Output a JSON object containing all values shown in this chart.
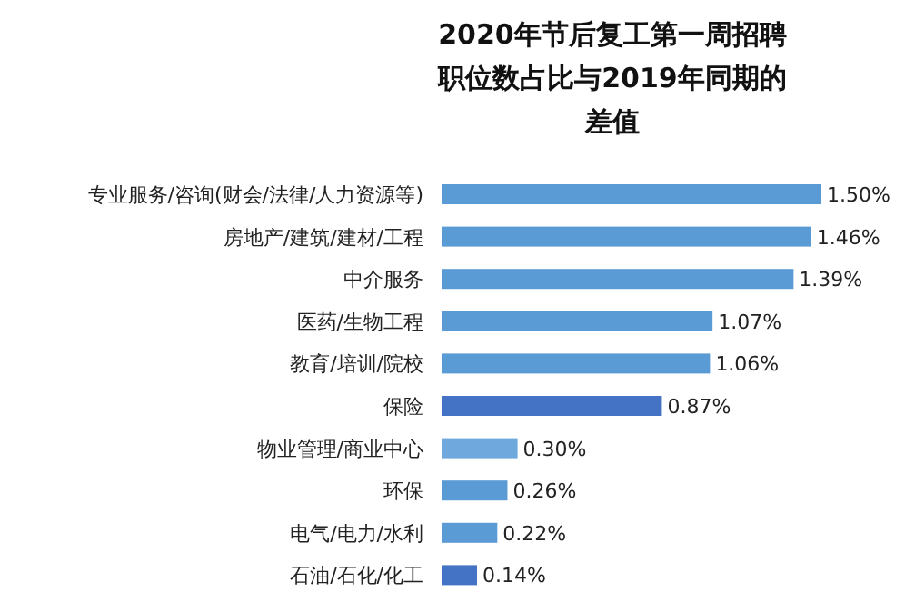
{
  "chart_data": {
    "type": "bar",
    "orientation": "horizontal",
    "title": "2020年节后复工第一周招聘职位数占比与2019年同期的差值",
    "categories": [
      "专业服务/咨询(财会/法律/人力资源等)",
      "房地产/建筑/建材/工程",
      "中介服务",
      "医药/生物工程",
      "教育/培训/院校",
      "保险",
      "物业管理/商业中心",
      "环保",
      "电气/电力/水利",
      "石油/石化/化工"
    ],
    "values": [
      1.5,
      1.46,
      1.39,
      1.07,
      1.06,
      0.87,
      0.3,
      0.26,
      0.22,
      0.14
    ],
    "value_labels": [
      "1.50%",
      "1.46%",
      "1.39%",
      "1.07%",
      "1.06%",
      "0.87%",
      "0.30%",
      "0.26%",
      "0.22%",
      "0.14%"
    ],
    "colors": [
      "#5b9bd5",
      "#5b9bd5",
      "#5b9bd5",
      "#5b9bd5",
      "#5b9bd5",
      "#4472c4",
      "#6fa8dc",
      "#5b9bd5",
      "#5b9bd5",
      "#4472c4"
    ],
    "xlim": [
      0,
      1.5
    ]
  }
}
